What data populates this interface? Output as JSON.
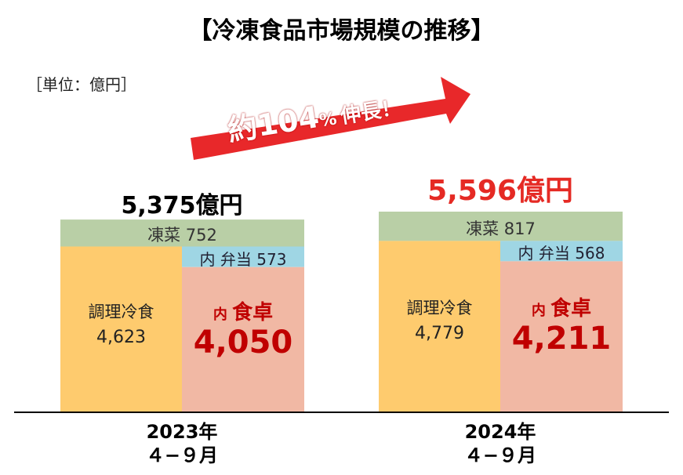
{
  "title": "【冷凍食品市場規模の推移】",
  "unit": "［単位：億円］",
  "growth": {
    "prefix": "約",
    "value": "104",
    "pct": "%",
    "suffix": "伸長！"
  },
  "colors": {
    "frozen_side": "#b9cfa6",
    "bento": "#9fd6e4",
    "cooked": "#fecb6e",
    "table": "#f1b8a4",
    "red": "#e52a24",
    "arrow": "#e8282a"
  },
  "chart_data": {
    "type": "bar",
    "categories": [
      "2023年 4−9月",
      "2024年 4−9月"
    ],
    "totals": [
      5375,
      5596
    ],
    "total_labels": [
      "5,375億円",
      "5,596億円"
    ],
    "ylim": [
      0,
      5596
    ],
    "series": [
      {
        "name": "凍菜",
        "values": [
          752,
          817
        ],
        "labels": [
          "凍菜 752",
          "凍菜 817"
        ]
      },
      {
        "name": "調理冷食",
        "values": [
          4623,
          4779
        ],
        "labels": [
          "4,623",
          "4,779"
        ]
      }
    ],
    "breakdown": [
      {
        "name": "内 弁当",
        "values": [
          573,
          568
        ],
        "labels": [
          "内 弁当 573",
          "内 弁当 568"
        ]
      },
      {
        "name": "内 食卓",
        "values": [
          4050,
          4211
        ],
        "labels": [
          "4,050",
          "4,211"
        ]
      }
    ],
    "cooked_name": "調理冷食",
    "table_prefix": "内",
    "table_name": "食卓"
  },
  "years": [
    {
      "line1": "2023年",
      "line2": "４−９月"
    },
    {
      "line1": "2024年",
      "line2": "４−９月"
    }
  ]
}
